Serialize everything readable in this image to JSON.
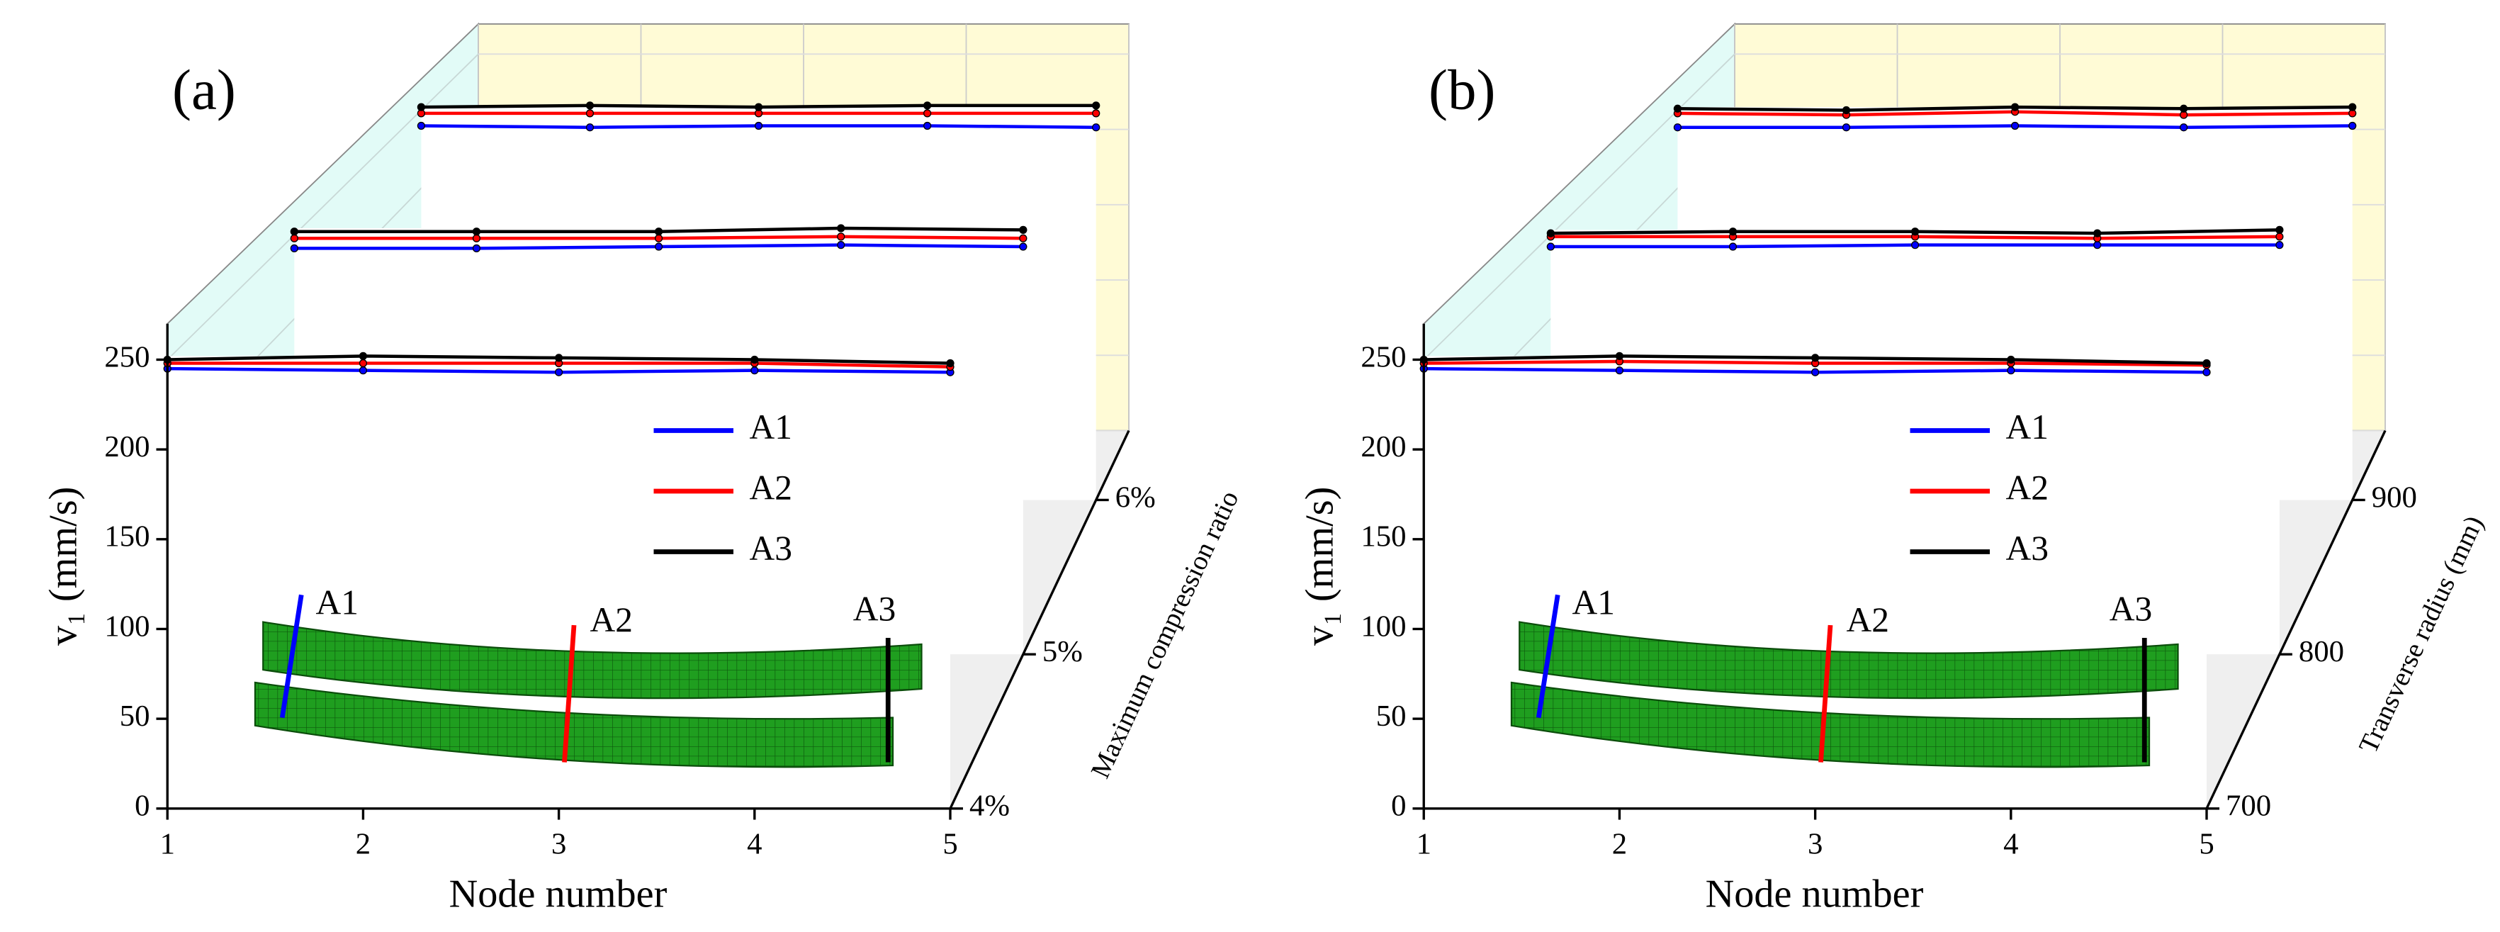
{
  "chart_data": [
    {
      "type": "line3d",
      "panel_label": "(a)",
      "x_label": "Node number",
      "y_label": "v₁ (mm/s)",
      "z_label": "Maximum compression ratio",
      "x": [
        1,
        2,
        3,
        4,
        5
      ],
      "xlim": [
        1,
        5
      ],
      "xticks": [
        1,
        2,
        3,
        4,
        5
      ],
      "ylim": [
        0,
        270
      ],
      "yticks": [
        0,
        50,
        100,
        150,
        200,
        250
      ],
      "z": [
        4,
        5,
        6
      ],
      "zlim": [
        4,
        6.45
      ],
      "zticks": [
        {
          "value": 4,
          "label": "4%"
        },
        {
          "value": 5,
          "label": "5%"
        },
        {
          "value": 6,
          "label": "6%"
        }
      ],
      "inset_labels": [
        "A1",
        "A2",
        "A3"
      ],
      "series": [
        {
          "name": "A1",
          "color": "#0000ff",
          "values": [
            [
              245,
              244,
              243,
              244,
              243
            ],
            [
              242,
              242,
              243,
              244,
              243
            ],
            [
              240,
              239,
              240,
              240,
              239
            ]
          ]
        },
        {
          "name": "A2",
          "color": "#ff0000",
          "values": [
            [
              248,
              248,
              248,
              248,
              246
            ],
            [
              248,
              248,
              248,
              249,
              248
            ],
            [
              248,
              248,
              248,
              248,
              248
            ]
          ]
        },
        {
          "name": "A3",
          "color": "#000000",
          "values": [
            [
              250,
              252,
              251,
              250,
              248
            ],
            [
              252,
              252,
              252,
              254,
              253
            ],
            [
              252,
              253,
              252,
              253,
              253
            ]
          ]
        }
      ]
    },
    {
      "type": "line3d",
      "panel_label": "(b)",
      "x_label": "Node number",
      "y_label": "v₁ (mm/s)",
      "z_label": "Transverse radius (mm)",
      "x": [
        1,
        2,
        3,
        4,
        5
      ],
      "xlim": [
        1,
        5
      ],
      "xticks": [
        1,
        2,
        3,
        4,
        5
      ],
      "ylim": [
        0,
        270
      ],
      "yticks": [
        0,
        50,
        100,
        150,
        200,
        250
      ],
      "z": [
        700,
        800,
        900
      ],
      "zlim": [
        700,
        945
      ],
      "zticks": [
        700,
        800,
        900
      ],
      "inset_labels": [
        "A1",
        "A2",
        "A3"
      ],
      "series": [
        {
          "name": "A1",
          "color": "#0000ff",
          "values": [
            [
              245,
              244,
              243,
              244,
              243
            ],
            [
              243,
              243,
              244,
              244,
              244
            ],
            [
              239,
              239,
              240,
              239,
              240
            ]
          ]
        },
        {
          "name": "A2",
          "color": "#ff0000",
          "values": [
            [
              248,
              249,
              248,
              248,
              247
            ],
            [
              249,
              249,
              249,
              248,
              249
            ],
            [
              248,
              247,
              249,
              247,
              248
            ]
          ]
        },
        {
          "name": "A3",
          "color": "#000000",
          "values": [
            [
              250,
              252,
              251,
              250,
              248
            ],
            [
              251,
              252,
              252,
              251,
              253
            ],
            [
              251,
              250,
              252,
              251,
              252
            ]
          ]
        }
      ]
    }
  ]
}
